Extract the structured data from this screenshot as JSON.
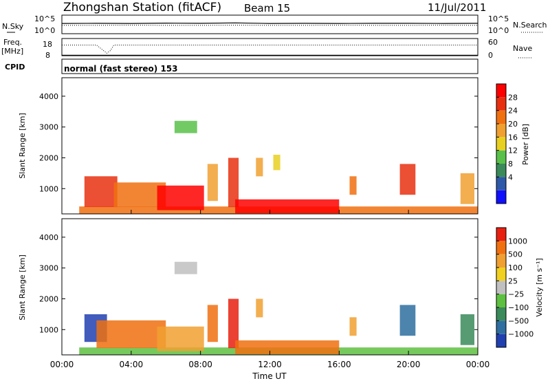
{
  "header": {
    "title": "Zhongshan Station (fitACF)",
    "beam": "Beam 15",
    "date": "11/Jul/2011",
    "cpid_label": "CPID",
    "cpid_value": "normal (fast stereo) 153"
  },
  "colors": {
    "power": [
      "#1010ff",
      "#2e58a8",
      "#3a8a5a",
      "#59c14a",
      "#e8d020",
      "#f0a030",
      "#f07010",
      "#e83010",
      "#ff0000"
    ],
    "velocity": [
      "#2040b0",
      "#2e6ea0",
      "#3a8a5a",
      "#5ec040",
      "#c0c0c0",
      "#f0d020",
      "#f0a030",
      "#f07010",
      "#e82010"
    ]
  },
  "chart_data": [
    {
      "type": "line",
      "name": "noise-panel",
      "ylabel_left": "N.Sky",
      "ylabel_right": "N.Search",
      "left_ticks": [
        "10^5",
        "10^0"
      ],
      "right_ticks": [
        "10^5",
        "10^0"
      ],
      "series": [
        {
          "name": "N.Sky",
          "style": "solid",
          "x": [
            0,
            2,
            4,
            6,
            8,
            10,
            12,
            14,
            16,
            18,
            20,
            22,
            24
          ],
          "y": [
            0.55,
            0.56,
            0.55,
            0.57,
            0.56,
            0.58,
            0.55,
            0.56,
            0.55,
            0.56,
            0.56,
            0.55,
            0.56
          ]
        },
        {
          "name": "N.Search",
          "style": "dotted",
          "x": [
            0,
            2,
            4,
            6,
            8,
            10,
            12,
            14,
            16,
            18,
            20,
            22,
            24
          ],
          "y": [
            0.45,
            0.45,
            0.46,
            0.45,
            0.45,
            0.46,
            0.45,
            0.45,
            0.46,
            0.45,
            0.45,
            0.46,
            0.45
          ]
        }
      ]
    },
    {
      "type": "line",
      "name": "freq-panel",
      "ylabel_left": "Freq.",
      "ylabel_left_unit": "[MHz]",
      "ylabel_right": "Nave",
      "left_ticks": [
        "18",
        "8"
      ],
      "right_ticks": [
        "60",
        "0"
      ],
      "series": [
        {
          "name": "Nave",
          "style": "dotted",
          "x": [
            0,
            2,
            2.4,
            2.6,
            2.8,
            3.0,
            4,
            8,
            12,
            16,
            20,
            24
          ],
          "y": [
            0.62,
            0.62,
            0.3,
            0.15,
            0.3,
            0.62,
            0.62,
            0.62,
            0.62,
            0.62,
            0.62,
            0.62
          ]
        },
        {
          "name": "Freq",
          "style": "solid",
          "x": [
            0,
            24
          ],
          "y": [
            0.02,
            0.02
          ]
        }
      ]
    },
    {
      "type": "heatmap",
      "name": "power-panel",
      "ylabel": "Slant Range [km]",
      "yticks": [
        1000,
        2000,
        3000,
        4000
      ],
      "ylim": [
        180,
        4600
      ],
      "colorbar_label": "Power [dB]",
      "colorbar_ticks": [
        "28",
        "24",
        "20",
        "16",
        "12",
        "8",
        "4"
      ],
      "patches": [
        {
          "t": [
            1.0,
            24.0
          ],
          "r": [
            180,
            420
          ],
          "v": 6
        },
        {
          "t": [
            1.3,
            3.2
          ],
          "r": [
            400,
            1400
          ],
          "v": 7
        },
        {
          "t": [
            3.0,
            6.0
          ],
          "r": [
            400,
            1200
          ],
          "v": 6
        },
        {
          "t": [
            5.5,
            8.2
          ],
          "r": [
            300,
            1100
          ],
          "v": 8
        },
        {
          "t": [
            6.5,
            7.8
          ],
          "r": [
            2800,
            3200
          ],
          "v": 3
        },
        {
          "t": [
            8.4,
            9.0
          ],
          "r": [
            600,
            1800
          ],
          "v": 5
        },
        {
          "t": [
            9.6,
            10.2
          ],
          "r": [
            400,
            2000
          ],
          "v": 7
        },
        {
          "t": [
            10.0,
            16.0
          ],
          "r": [
            200,
            650
          ],
          "v": 8
        },
        {
          "t": [
            11.2,
            11.6
          ],
          "r": [
            1400,
            2000
          ],
          "v": 5
        },
        {
          "t": [
            12.2,
            12.6
          ],
          "r": [
            1600,
            2100
          ],
          "v": 4
        },
        {
          "t": [
            16.6,
            17.0
          ],
          "r": [
            800,
            1400
          ],
          "v": 6
        },
        {
          "t": [
            19.5,
            20.4
          ],
          "r": [
            800,
            1800
          ],
          "v": 7
        },
        {
          "t": [
            23.0,
            23.8
          ],
          "r": [
            500,
            1500
          ],
          "v": 5
        }
      ]
    },
    {
      "type": "heatmap",
      "name": "velocity-panel",
      "ylabel": "Slant Range [km]",
      "yticks": [
        1000,
        2000,
        3000,
        4000
      ],
      "ylim": [
        180,
        4600
      ],
      "colorbar_label": "Velocity [m s⁻¹]",
      "colorbar_ticks": [
        "1000",
        "500",
        "100",
        "25",
        "−25",
        "−100",
        "−500",
        "−1000"
      ],
      "xticks": [
        "00:00",
        "04:00",
        "08:00",
        "12:00",
        "16:00",
        "20:00",
        "00:00"
      ],
      "xlabel": "Time UT",
      "patches": [
        {
          "t": [
            1.0,
            24.0
          ],
          "r": [
            180,
            420
          ],
          "v": 3
        },
        {
          "t": [
            1.3,
            2.6
          ],
          "r": [
            600,
            1500
          ],
          "v": 0
        },
        {
          "t": [
            2.0,
            6.0
          ],
          "r": [
            400,
            1300
          ],
          "v": 7
        },
        {
          "t": [
            5.5,
            8.2
          ],
          "r": [
            300,
            1100
          ],
          "v": 6
        },
        {
          "t": [
            6.5,
            7.8
          ],
          "r": [
            2800,
            3200
          ],
          "v": 4
        },
        {
          "t": [
            8.4,
            9.0
          ],
          "r": [
            600,
            1800
          ],
          "v": 7
        },
        {
          "t": [
            9.6,
            10.2
          ],
          "r": [
            400,
            2000
          ],
          "v": 8
        },
        {
          "t": [
            10.0,
            16.0
          ],
          "r": [
            200,
            650
          ],
          "v": 7
        },
        {
          "t": [
            11.2,
            11.6
          ],
          "r": [
            1400,
            2000
          ],
          "v": 6
        },
        {
          "t": [
            16.6,
            17.0
          ],
          "r": [
            800,
            1400
          ],
          "v": 6
        },
        {
          "t": [
            19.5,
            20.4
          ],
          "r": [
            800,
            1800
          ],
          "v": 1
        },
        {
          "t": [
            23.0,
            23.8
          ],
          "r": [
            500,
            1500
          ],
          "v": 2
        }
      ]
    }
  ]
}
